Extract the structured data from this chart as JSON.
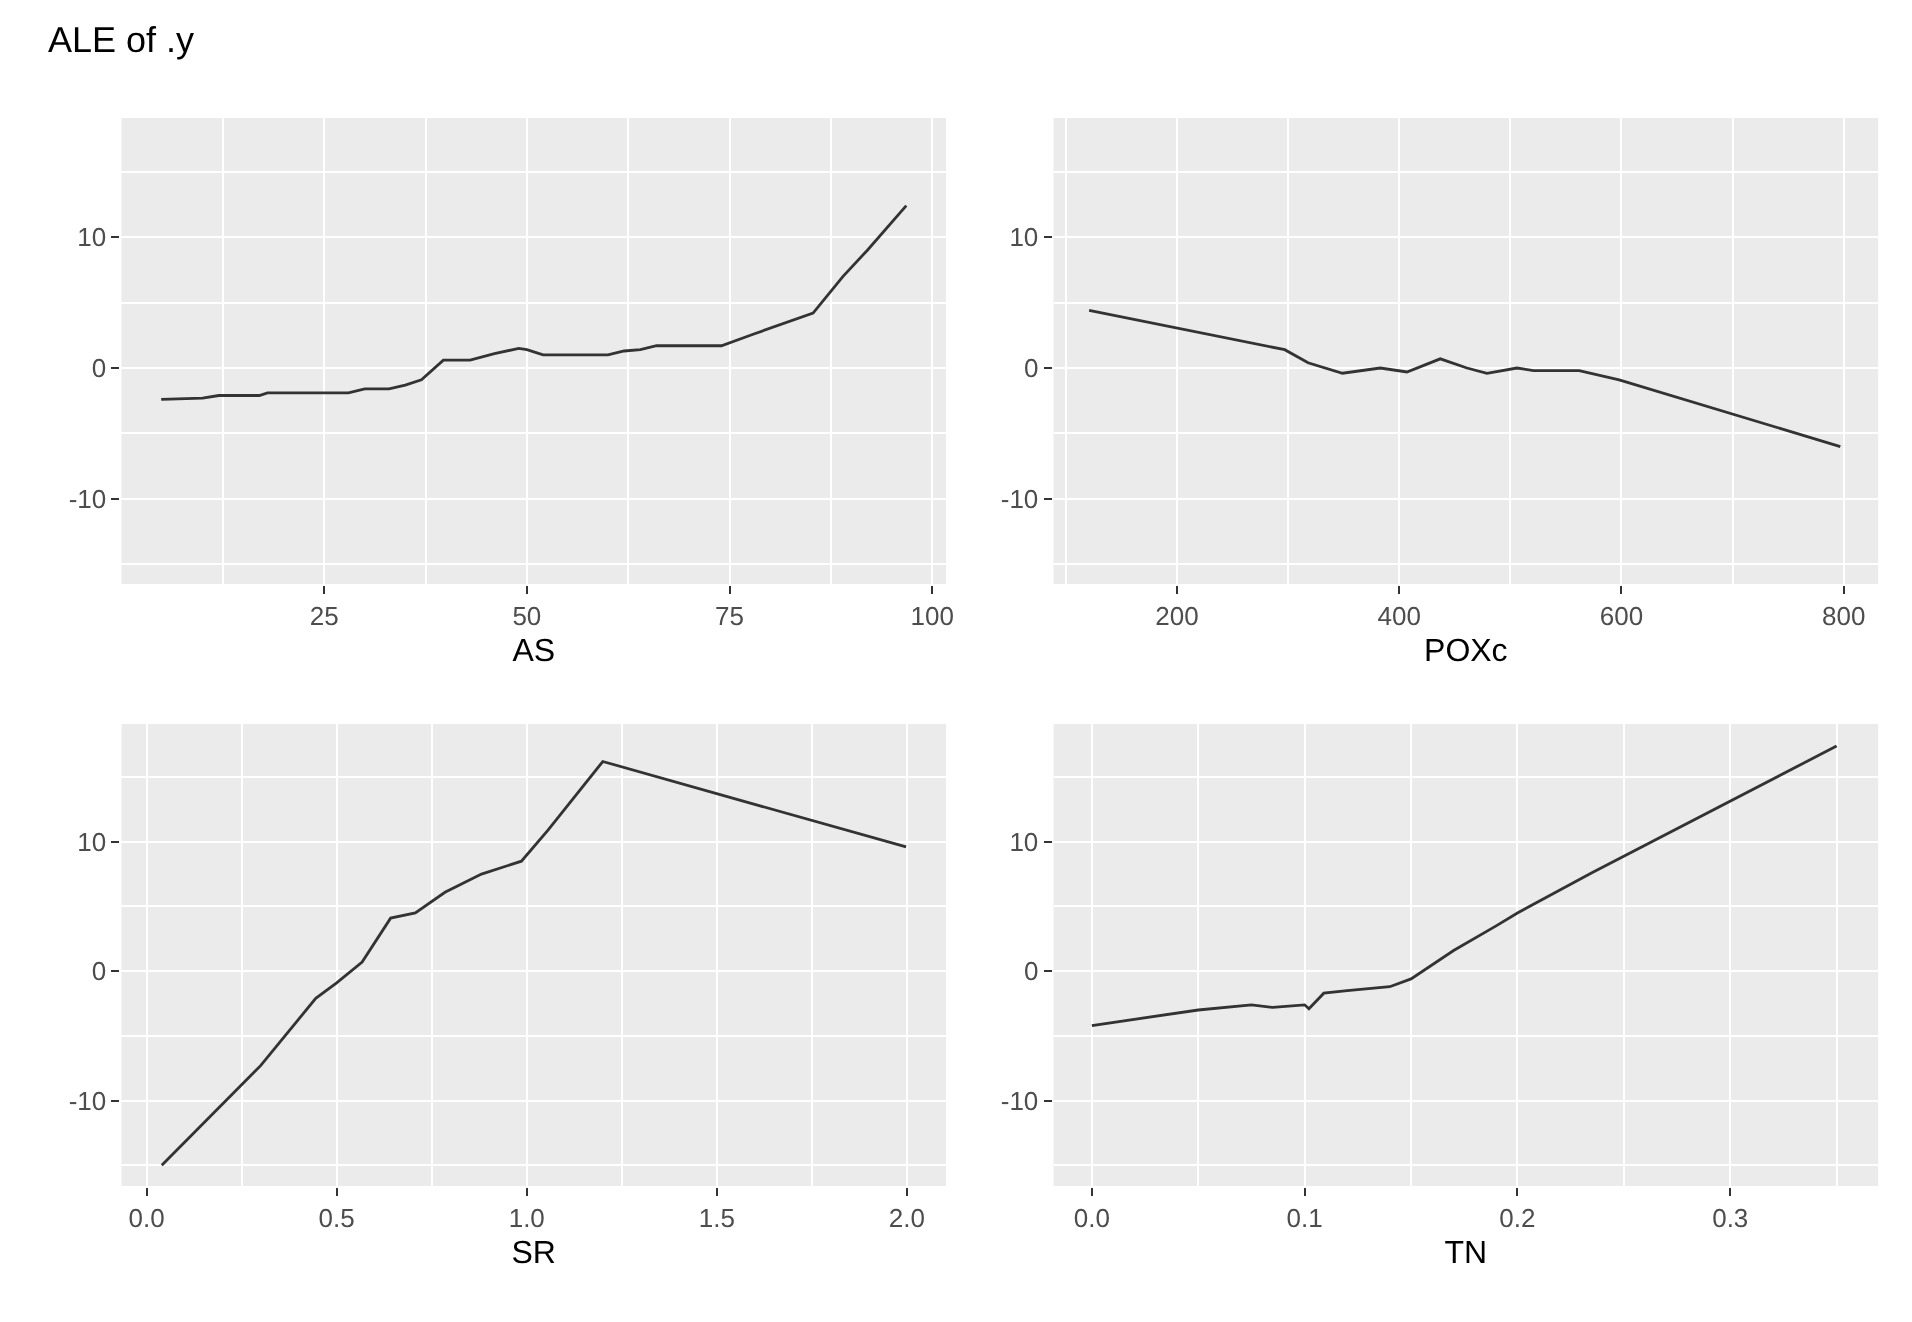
{
  "chart_data": [
    {
      "type": "line",
      "title": "ALE of .y",
      "xlabel": "AS",
      "grid": true,
      "marker": "none",
      "line_style": "solid",
      "x": [
        4.9,
        10,
        12,
        17,
        18,
        28,
        30,
        33,
        35,
        37,
        39.7,
        43,
        46,
        49,
        50,
        52,
        60,
        62,
        64,
        66,
        74,
        78,
        85.3,
        89,
        92,
        96.8
      ],
      "series": [
        {
          "color": "#333333",
          "values": [
            -2.4,
            -2.3,
            -2.1,
            -2.1,
            -1.9,
            -1.9,
            -1.6,
            -1.6,
            -1.3,
            -0.9,
            0.6,
            0.6,
            1.1,
            1.5,
            1.4,
            1.0,
            1.0,
            1.3,
            1.4,
            1.7,
            1.7,
            2.6,
            4.2,
            7.0,
            9.0,
            12.4
          ]
        }
      ],
      "xlim": [
        0,
        101.7
      ],
      "xticks": [
        25,
        50,
        75,
        100
      ],
      "ylim": [
        -16.5,
        19.1
      ],
      "yticks": [
        -10,
        0,
        10
      ]
    },
    {
      "type": "line",
      "xlabel": "POXc",
      "grid": true,
      "marker": "none",
      "line_style": "solid",
      "x": [
        121,
        297,
        318,
        349,
        383,
        407,
        437,
        461,
        479,
        506,
        521,
        562,
        598,
        797
      ],
      "series": [
        {
          "color": "#333333",
          "values": [
            4.4,
            1.4,
            0.4,
            -0.4,
            0,
            -0.3,
            0.7,
            0,
            -0.4,
            0,
            -0.2,
            -0.2,
            -0.9,
            -6.0
          ]
        }
      ],
      "xlim": [
        89,
        831
      ],
      "xticks": [
        200,
        400,
        600,
        800
      ],
      "ylim": [
        -16.5,
        19.1
      ],
      "yticks": [
        -10,
        0,
        10
      ]
    },
    {
      "type": "line",
      "xlabel": "SR",
      "grid": true,
      "marker": "none",
      "line_style": "solid",
      "x": [
        0.04,
        0.3,
        0.445,
        0.5,
        0.567,
        0.642,
        0.707,
        0.785,
        0.881,
        0.986,
        1.056,
        1.2,
        1.998
      ],
      "series": [
        {
          "color": "#333333",
          "values": [
            -15.0,
            -7.3,
            -2.1,
            -0.9,
            0.7,
            4.1,
            4.5,
            6.1,
            7.5,
            8.5,
            10.9,
            16.2,
            9.6
          ]
        }
      ],
      "xlim": [
        -0.066,
        2.103
      ],
      "xticks": [
        {
          "value": 0,
          "label": "0.0"
        },
        0.5,
        {
          "value": 1,
          "label": "1.0"
        },
        1.5,
        {
          "value": 2,
          "label": "2.0"
        }
      ],
      "ylim": [
        -16.6,
        19.1
      ],
      "yticks": [
        -10,
        0,
        10
      ]
    },
    {
      "type": "line",
      "xlabel": "TN",
      "grid": true,
      "marker": "none",
      "line_style": "solid",
      "x": [
        0,
        0.05,
        0.075,
        0.085,
        0.1,
        0.102,
        0.109,
        0.12,
        0.14,
        0.15,
        0.17,
        0.19,
        0.2,
        0.235,
        0.35
      ],
      "series": [
        {
          "color": "#333333",
          "values": [
            -4.2,
            -3.0,
            -2.6,
            -2.8,
            -2.6,
            -2.9,
            -1.7,
            -1.5,
            -1.2,
            -0.6,
            1.6,
            3.5,
            4.5,
            7.6,
            17.4
          ]
        }
      ],
      "xlim": [
        -0.018,
        0.3695
      ],
      "xticks": [
        {
          "value": 0,
          "label": "0.0"
        },
        0.1,
        0.2,
        0.3
      ],
      "ylim": [
        -16.6,
        19.1
      ],
      "yticks": [
        -10,
        0,
        10
      ]
    }
  ]
}
